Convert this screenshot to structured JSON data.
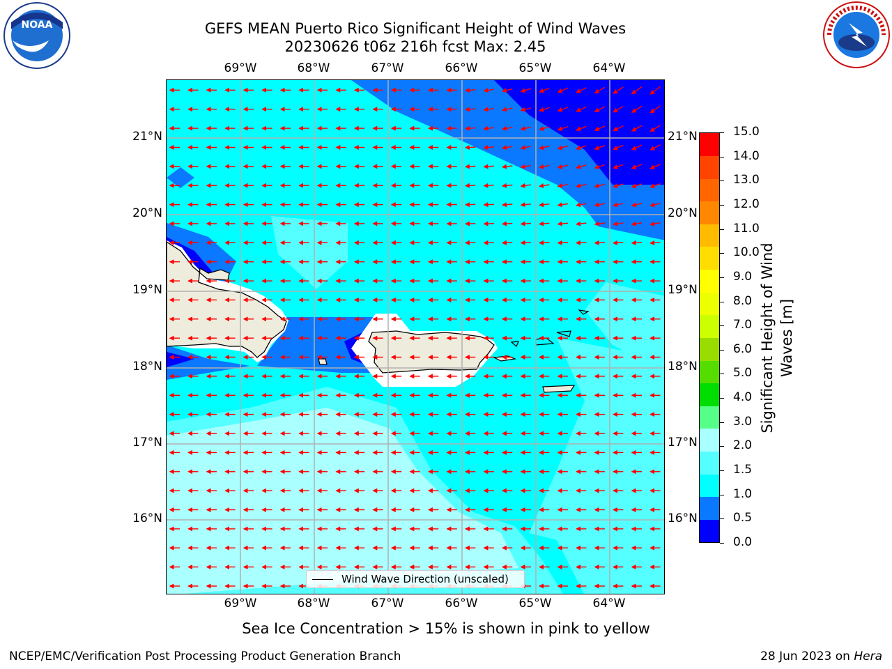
{
  "header": {
    "title_line1": "GEFS MEAN Puerto Rico Significant Height of Wind Waves",
    "title_line2": "20230626 t06z 216h fcst   Max: 2.45"
  },
  "logos": {
    "noaa": "NOAA",
    "noaa_ring": "NATIONAL OCEANIC AND ATMOSPHERIC ADMINISTRATION · U.S. DEPARTMENT OF COMMERCE",
    "nws_ring": "NATIONAL WEATHER SERVICE"
  },
  "map": {
    "lon_labels": [
      "69°W",
      "68°W",
      "67°W",
      "66°W",
      "65°W",
      "64°W"
    ],
    "lat_labels": [
      "21°N",
      "20°N",
      "19°N",
      "18°N",
      "17°N",
      "16°N"
    ],
    "lon_range": [
      -70.0,
      -63.25
    ],
    "lat_range": [
      15.0,
      21.75
    ],
    "grid": true,
    "land_color": "#eeecdd",
    "arrow_color": "#ff0000",
    "legend_label": "Wind Wave Direction (unscaled)"
  },
  "colorbar": {
    "label": "Significant Height of Wind Waves [m]",
    "ticks": [
      "15.0",
      "14.0",
      "13.0",
      "12.0",
      "11.0",
      "10.0",
      "9.0",
      "8.0",
      "7.0",
      "6.0",
      "5.0",
      "4.0",
      "3.0",
      "2.0",
      "1.5",
      "1.0",
      "0.5",
      "0.0"
    ],
    "colors": [
      "#0000ff",
      "#0a78ff",
      "#00ffff",
      "#55ffff",
      "#aaffff",
      "#55ff88",
      "#00dd00",
      "#55dd00",
      "#99dd00",
      "#ccff00",
      "#eeff00",
      "#ffff00",
      "#ffdd00",
      "#ffbb00",
      "#ff8800",
      "#ff6600",
      "#ff4400",
      "#ff0000"
    ]
  },
  "notes": {
    "sea_ice": "Sea Ice Concentration > 15% is shown in pink to yellow"
  },
  "footer": {
    "left": "NCEP/EMC/Verification Post Processing Product Generation Branch",
    "date": "28 Jun 2023 on ",
    "machine": "Hera"
  }
}
